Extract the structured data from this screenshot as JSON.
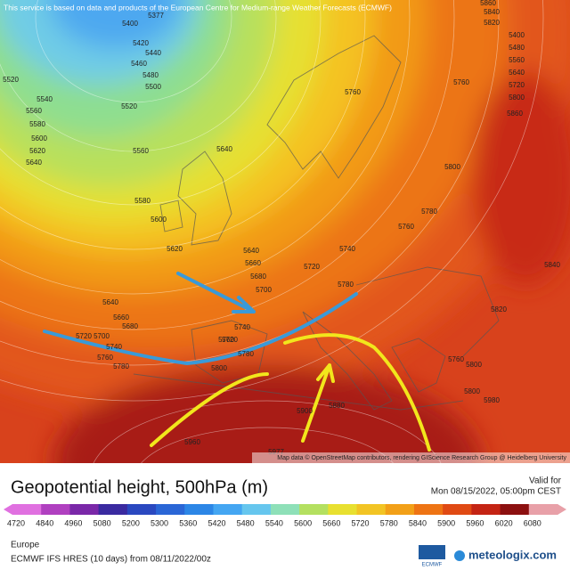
{
  "disclaimer": "This service is based on data and products of the European Centre for Medium-range Weather Forecasts (ECMWF)",
  "attribution": "Map data © OpenStreetMap contributors, rendering GIScience Research Group @ Heidelberg University",
  "title": "Geopotential height, 500hPa (m)",
  "valid_label": "Valid for",
  "valid_time": "Mon 08/15/2022, 05:00pm CEST",
  "colorbar": {
    "ticks": [
      4720,
      4840,
      4960,
      5080,
      5200,
      5300,
      5360,
      5420,
      5480,
      5540,
      5600,
      5660,
      5720,
      5780,
      5840,
      5900,
      5960,
      6020,
      6080
    ],
    "colors": [
      "#e070e0",
      "#b040c0",
      "#7a28a8",
      "#3a2aa0",
      "#2a48c0",
      "#2a66d6",
      "#2c86e6",
      "#44a6f2",
      "#66c6ee",
      "#8ee0b8",
      "#b4e060",
      "#e8e030",
      "#f2c424",
      "#f2a018",
      "#ee7414",
      "#e04a14",
      "#c42414",
      "#8c1010",
      "#e8a0a8"
    ]
  },
  "region": "Europe",
  "model_run": "ECMWF IFS HRES (10 days) from 08/11/2022/00z",
  "logo_ecmwf": "ECMWF",
  "logo": "meteologix.com",
  "map_labels": [
    "5377",
    "5400",
    "5420",
    "5440",
    "5460",
    "5480",
    "5500",
    "5520",
    "5520",
    "5540",
    "5560",
    "5580",
    "5600",
    "5620",
    "5640",
    "5560",
    "5640",
    "5580",
    "5600",
    "5620",
    "5640",
    "5660",
    "5680",
    "5700",
    "5720",
    "5740",
    "5760",
    "5780",
    "5640",
    "5660",
    "5680",
    "5700",
    "5720",
    "5740",
    "5760",
    "5780",
    "5800",
    "5720",
    "5740",
    "5760",
    "5780",
    "5800",
    "5760",
    "5760",
    "5780",
    "5760",
    "5800",
    "5820",
    "5840",
    "5800",
    "5820",
    "5840",
    "5860",
    "5880",
    "5900",
    "5960",
    "5977",
    "5400",
    "5480",
    "5560",
    "5640",
    "5720",
    "5800",
    "5860",
    "5980"
  ]
}
